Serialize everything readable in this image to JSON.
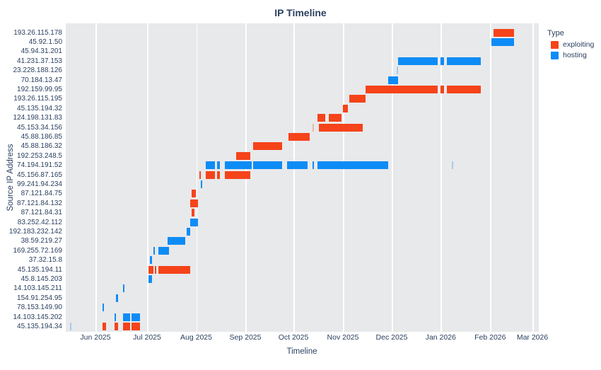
{
  "title": "IP Timeline",
  "x_axis": {
    "title": "Timeline",
    "ticks": [
      "Jun 2025",
      "Jul 2025",
      "Aug 2025",
      "Sep 2025",
      "Oct 2025",
      "Nov 2025",
      "Dec 2025",
      "Jan 2026",
      "Feb 2026",
      "Mar 2026"
    ]
  },
  "y_axis": {
    "title": "Source IP Address"
  },
  "legend": {
    "title": "Type",
    "items": [
      {
        "label": "exploiting",
        "color": "#f5431a"
      },
      {
        "label": "hosting",
        "color": "#0e8cf6"
      }
    ]
  },
  "colors": {
    "plot_background": "#e8e9eb",
    "gridline": "#ffffff",
    "text": "#2a3f5f",
    "exploiting": "#f5431a",
    "hosting": "#0e8cf6"
  },
  "chart_data": {
    "type": "gantt",
    "title": "IP Timeline",
    "xlabel": "Timeline",
    "ylabel": "Source IP Address",
    "x_range": [
      "2025-05-15",
      "2026-03-20"
    ],
    "grid": true,
    "legend_position": "top-right",
    "rows": [
      {
        "ip": "193.26.115.178",
        "bars": [
          {
            "type": "exploiting",
            "start": "2026-02-03",
            "end": "2026-02-17"
          }
        ]
      },
      {
        "ip": "45.92.1.50",
        "bars": [
          {
            "type": "hosting",
            "start": "2026-02-02",
            "end": "2026-02-17"
          }
        ]
      },
      {
        "ip": "45.94.31.201",
        "bars": []
      },
      {
        "ip": "41.231.37.153",
        "bars": [
          {
            "type": "hosting",
            "start": "2025-12-05",
            "end": "2025-12-30"
          },
          {
            "type": "hosting",
            "start": "2026-01-01",
            "end": "2026-01-03"
          },
          {
            "type": "hosting",
            "start": "2026-01-05",
            "end": "2026-01-26"
          }
        ]
      },
      {
        "ip": "23.228.188.126",
        "bars": [
          {
            "type": "hosting",
            "start": "2025-12-04",
            "end": "2025-12-05",
            "faint": true
          }
        ]
      },
      {
        "ip": "70.184.13.47",
        "bars": [
          {
            "type": "hosting",
            "start": "2025-11-29",
            "end": "2025-12-05"
          }
        ]
      },
      {
        "ip": "192.159.99.95",
        "bars": [
          {
            "type": "exploiting",
            "start": "2025-11-15",
            "end": "2025-12-30"
          },
          {
            "type": "exploiting",
            "start": "2026-01-01",
            "end": "2026-01-03"
          },
          {
            "type": "exploiting",
            "start": "2026-01-05",
            "end": "2026-01-26"
          }
        ]
      },
      {
        "ip": "193.26.115.195",
        "bars": [
          {
            "type": "exploiting",
            "start": "2025-11-05",
            "end": "2025-11-15"
          }
        ]
      },
      {
        "ip": "45.135.194.32",
        "bars": [
          {
            "type": "exploiting",
            "start": "2025-11-01",
            "end": "2025-11-04"
          }
        ]
      },
      {
        "ip": "124.198.131.83",
        "bars": [
          {
            "type": "exploiting",
            "start": "2025-10-16",
            "end": "2025-10-21"
          },
          {
            "type": "exploiting",
            "start": "2025-10-23",
            "end": "2025-10-31"
          }
        ]
      },
      {
        "ip": "45.153.34.156",
        "bars": [
          {
            "type": "exploiting",
            "start": "2025-10-13",
            "end": "2025-10-14",
            "faint": true
          },
          {
            "type": "exploiting",
            "start": "2025-10-17",
            "end": "2025-11-13"
          }
        ]
      },
      {
        "ip": "45.88.186.85",
        "bars": [
          {
            "type": "exploiting",
            "start": "2025-09-28",
            "end": "2025-10-11"
          }
        ]
      },
      {
        "ip": "45.88.186.32",
        "bars": [
          {
            "type": "exploiting",
            "start": "2025-09-06",
            "end": "2025-09-24"
          }
        ]
      },
      {
        "ip": "192.253.248.5",
        "bars": [
          {
            "type": "exploiting",
            "start": "2025-08-26",
            "end": "2025-09-04"
          }
        ]
      },
      {
        "ip": "74.194.191.52",
        "bars": [
          {
            "type": "hosting",
            "start": "2025-08-07",
            "end": "2025-08-13"
          },
          {
            "type": "hosting",
            "start": "2025-08-14",
            "end": "2025-08-16"
          },
          {
            "type": "hosting",
            "start": "2025-08-19",
            "end": "2025-09-05"
          },
          {
            "type": "hosting",
            "start": "2025-09-06",
            "end": "2025-09-24"
          },
          {
            "type": "hosting",
            "start": "2025-09-27",
            "end": "2025-10-10"
          },
          {
            "type": "hosting",
            "start": "2025-10-13",
            "end": "2025-10-14"
          },
          {
            "type": "hosting",
            "start": "2025-10-16",
            "end": "2025-11-29"
          },
          {
            "type": "hosting",
            "start": "2026-01-08",
            "end": "2026-01-09",
            "faint": true
          }
        ]
      },
      {
        "ip": "45.156.87.165",
        "bars": [
          {
            "type": "exploiting",
            "start": "2025-08-03",
            "end": "2025-08-04"
          },
          {
            "type": "exploiting",
            "start": "2025-08-07",
            "end": "2025-08-13"
          },
          {
            "type": "exploiting",
            "start": "2025-08-14",
            "end": "2025-08-16"
          },
          {
            "type": "exploiting",
            "start": "2025-08-19",
            "end": "2025-09-04"
          }
        ]
      },
      {
        "ip": "99.241.94.234",
        "bars": [
          {
            "type": "hosting",
            "start": "2025-08-04",
            "end": "2025-08-05"
          }
        ]
      },
      {
        "ip": "87.121.84.75",
        "bars": [
          {
            "type": "exploiting",
            "start": "2025-07-29",
            "end": "2025-08-01"
          }
        ]
      },
      {
        "ip": "87.121.84.132",
        "bars": [
          {
            "type": "exploiting",
            "start": "2025-07-28",
            "end": "2025-08-02"
          }
        ]
      },
      {
        "ip": "87.121.84.31",
        "bars": [
          {
            "type": "exploiting",
            "start": "2025-07-29",
            "end": "2025-07-31"
          }
        ]
      },
      {
        "ip": "83.252.42.112",
        "bars": [
          {
            "type": "hosting",
            "start": "2025-07-28",
            "end": "2025-08-02"
          }
        ]
      },
      {
        "ip": "192.183.232.142",
        "bars": [
          {
            "type": "hosting",
            "start": "2025-07-26",
            "end": "2025-07-28"
          }
        ]
      },
      {
        "ip": "38.59.219.27",
        "bars": [
          {
            "type": "hosting",
            "start": "2025-07-14",
            "end": "2025-07-25"
          }
        ]
      },
      {
        "ip": "169.255.72.169",
        "bars": [
          {
            "type": "hosting",
            "start": "2025-07-05",
            "end": "2025-07-06"
          },
          {
            "type": "hosting",
            "start": "2025-07-08",
            "end": "2025-07-15"
          }
        ]
      },
      {
        "ip": "37.32.15.8",
        "bars": [
          {
            "type": "hosting",
            "start": "2025-07-03",
            "end": "2025-07-04"
          }
        ]
      },
      {
        "ip": "45.135.194.11",
        "bars": [
          {
            "type": "exploiting",
            "start": "2025-07-02",
            "end": "2025-07-05"
          },
          {
            "type": "exploiting",
            "start": "2025-07-06",
            "end": "2025-07-07"
          },
          {
            "type": "exploiting",
            "start": "2025-07-08",
            "end": "2025-07-28"
          }
        ]
      },
      {
        "ip": "45.8.145.203",
        "bars": [
          {
            "type": "hosting",
            "start": "2025-07-02",
            "end": "2025-07-04"
          }
        ]
      },
      {
        "ip": "14.103.145.211",
        "bars": [
          {
            "type": "hosting",
            "start": "2025-06-17",
            "end": "2025-06-18"
          }
        ]
      },
      {
        "ip": "154.91.254.95",
        "bars": [
          {
            "type": "hosting",
            "start": "2025-06-13",
            "end": "2025-06-14"
          }
        ]
      },
      {
        "ip": "78.153.149.90",
        "bars": [
          {
            "type": "hosting",
            "start": "2025-06-05",
            "end": "2025-06-06"
          }
        ]
      },
      {
        "ip": "14.103.145.202",
        "bars": [
          {
            "type": "hosting",
            "start": "2025-06-12",
            "end": "2025-06-13"
          },
          {
            "type": "hosting",
            "start": "2025-06-17",
            "end": "2025-06-21"
          },
          {
            "type": "hosting",
            "start": "2025-06-22",
            "end": "2025-06-27"
          }
        ]
      },
      {
        "ip": "45.135.194.34",
        "bars": [
          {
            "type": "hosting",
            "start": "2025-05-17",
            "end": "2025-05-18",
            "faint": true
          },
          {
            "type": "exploiting",
            "start": "2025-06-05",
            "end": "2025-06-07"
          },
          {
            "type": "exploiting",
            "start": "2025-06-12",
            "end": "2025-06-14"
          },
          {
            "type": "exploiting",
            "start": "2025-06-17",
            "end": "2025-06-21"
          },
          {
            "type": "exploiting",
            "start": "2025-06-22",
            "end": "2025-06-27"
          }
        ]
      }
    ]
  }
}
